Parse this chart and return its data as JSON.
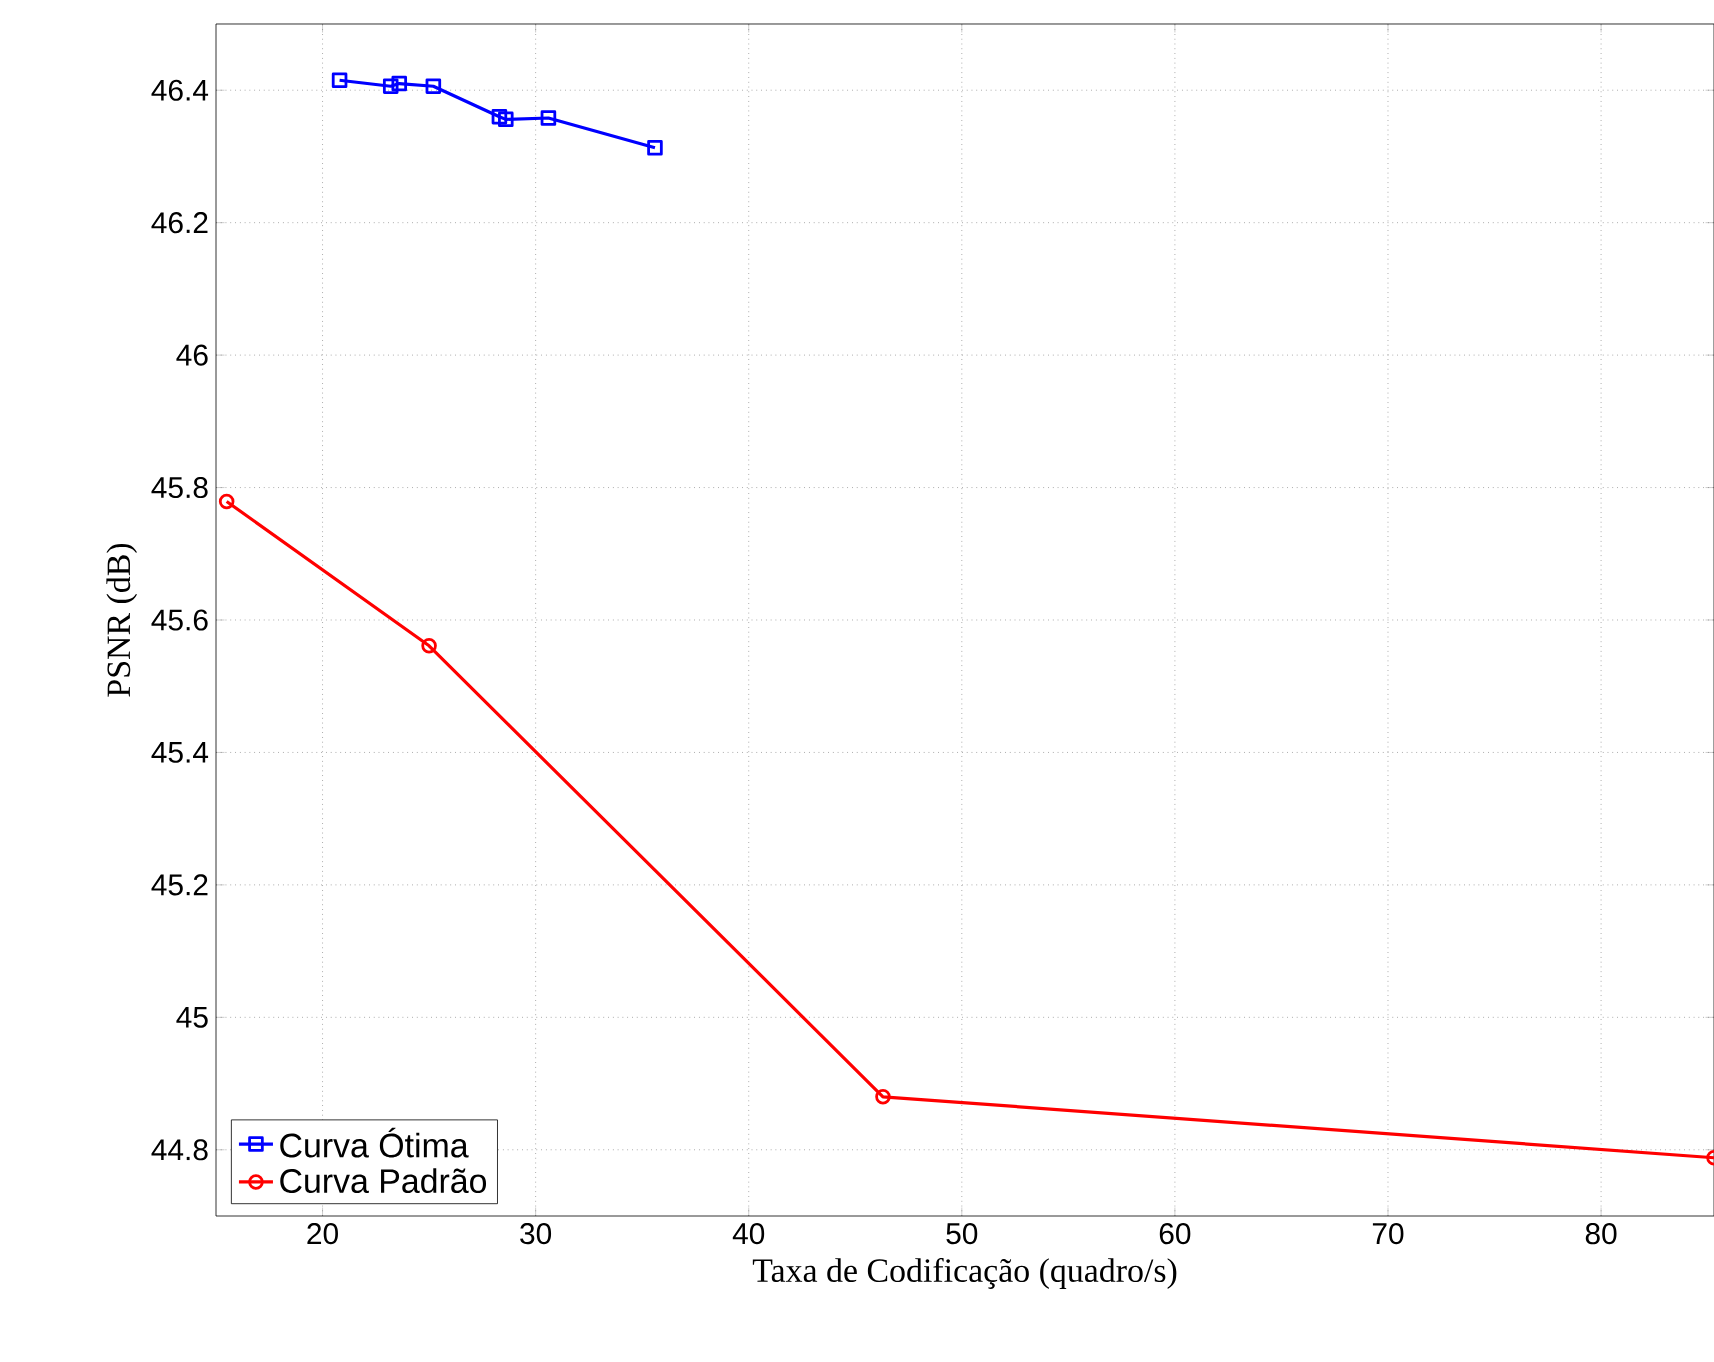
{
  "chart_data": {
    "type": "line",
    "xlabel": "Taxa de Codificação (quadro/s)",
    "ylabel": "PSNR (dB)",
    "xlim": [
      15,
      85.3
    ],
    "ylim": [
      44.7,
      46.5
    ],
    "xticks": [
      20,
      30,
      40,
      50,
      60,
      70,
      80
    ],
    "yticks": [
      44.8,
      45,
      45.2,
      45.4,
      45.6,
      45.8,
      46,
      46.2,
      46.4
    ],
    "grid": true,
    "legend": "bottom left",
    "line_style": "solid",
    "series": [
      {
        "name": "Curva Ótima",
        "color": "#0000ff",
        "marker": "square",
        "x": [
          20.8,
          23.2,
          23.6,
          25.2,
          28.3,
          28.6,
          30.6,
          35.6
        ],
        "values": [
          46.415,
          46.406,
          46.41,
          46.406,
          46.36,
          46.356,
          46.358,
          46.313
        ]
      },
      {
        "name": "Curva Padrão",
        "color": "#ff0000",
        "marker": "circle",
        "x": [
          15.5,
          25.0,
          46.3,
          85.3
        ],
        "values": [
          45.779,
          45.561,
          44.88,
          44.788
        ]
      }
    ]
  }
}
